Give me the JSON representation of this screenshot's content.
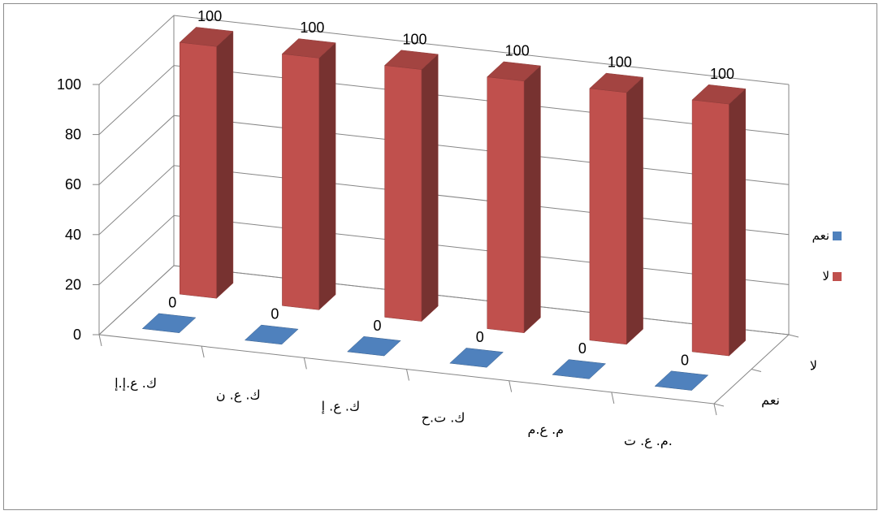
{
  "chart_data": {
    "type": "bar",
    "subtype": "3d-column",
    "categories": [
      "ك. ع.إ.إ",
      "ك. ع. ن",
      "ك. ع. إ",
      "ك. ت.ح",
      "م. ع.م",
      "م. ع. ت."
    ],
    "series": [
      {
        "name": "نعم",
        "values": [
          0,
          0,
          0,
          0,
          0,
          0
        ],
        "color": "#4F81BD"
      },
      {
        "name": "لا",
        "values": [
          100,
          100,
          100,
          100,
          100,
          100
        ],
        "color": "#C0504D"
      }
    ],
    "depth_labels": [
      "لا",
      "نعم"
    ],
    "yticks": [
      0,
      20,
      40,
      60,
      80,
      100
    ],
    "ylim": [
      0,
      100
    ],
    "grid": true,
    "legend": "right",
    "data_labels": true
  }
}
